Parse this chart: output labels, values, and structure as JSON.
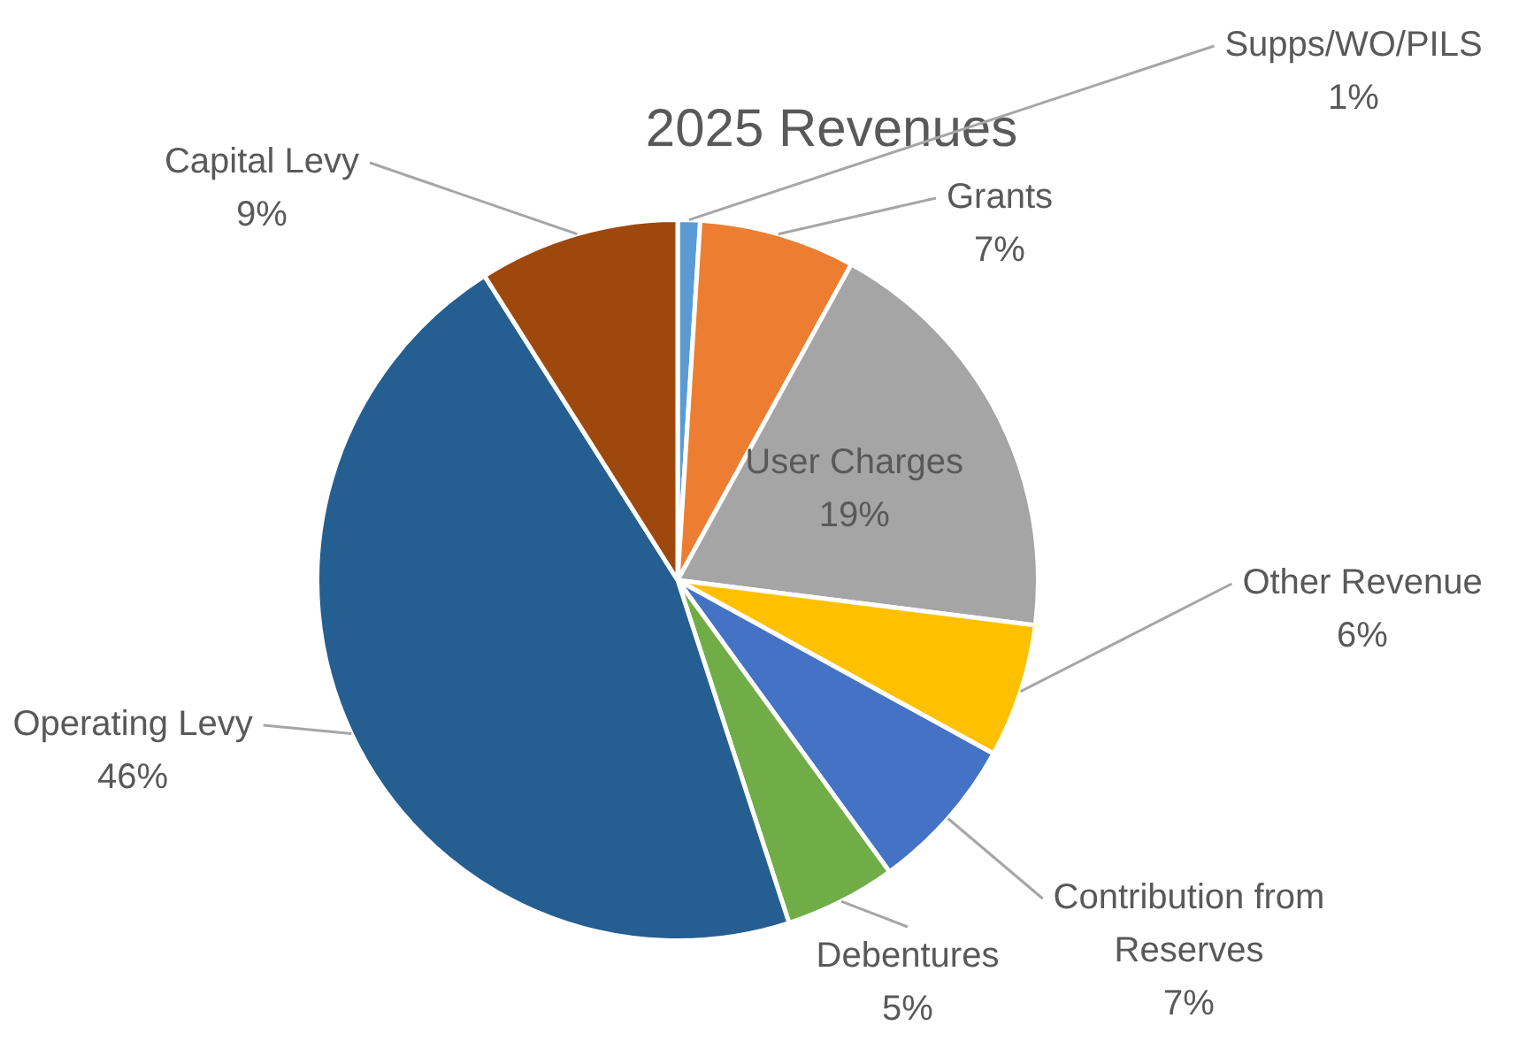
{
  "chart_data": {
    "type": "pie",
    "title": "2025 Revenues",
    "categories": [
      "Supps/WO/PILS",
      "Grants",
      "User Charges",
      "Other Revenue",
      "Contribution from Reserves",
      "Debentures",
      "Operating Levy",
      "Capital Levy"
    ],
    "values": [
      1,
      7,
      19,
      6,
      7,
      5,
      46,
      9
    ],
    "value_labels": [
      "1%",
      "7%",
      "19%",
      "6%",
      "7%",
      "5%",
      "46%",
      "9%"
    ],
    "colors": [
      "#5b9bd5",
      "#ed7d31",
      "#a5a5a5",
      "#ffc000",
      "#4472c4",
      "#70ad47",
      "#255e91",
      "#9e480e"
    ],
    "legend": false
  }
}
